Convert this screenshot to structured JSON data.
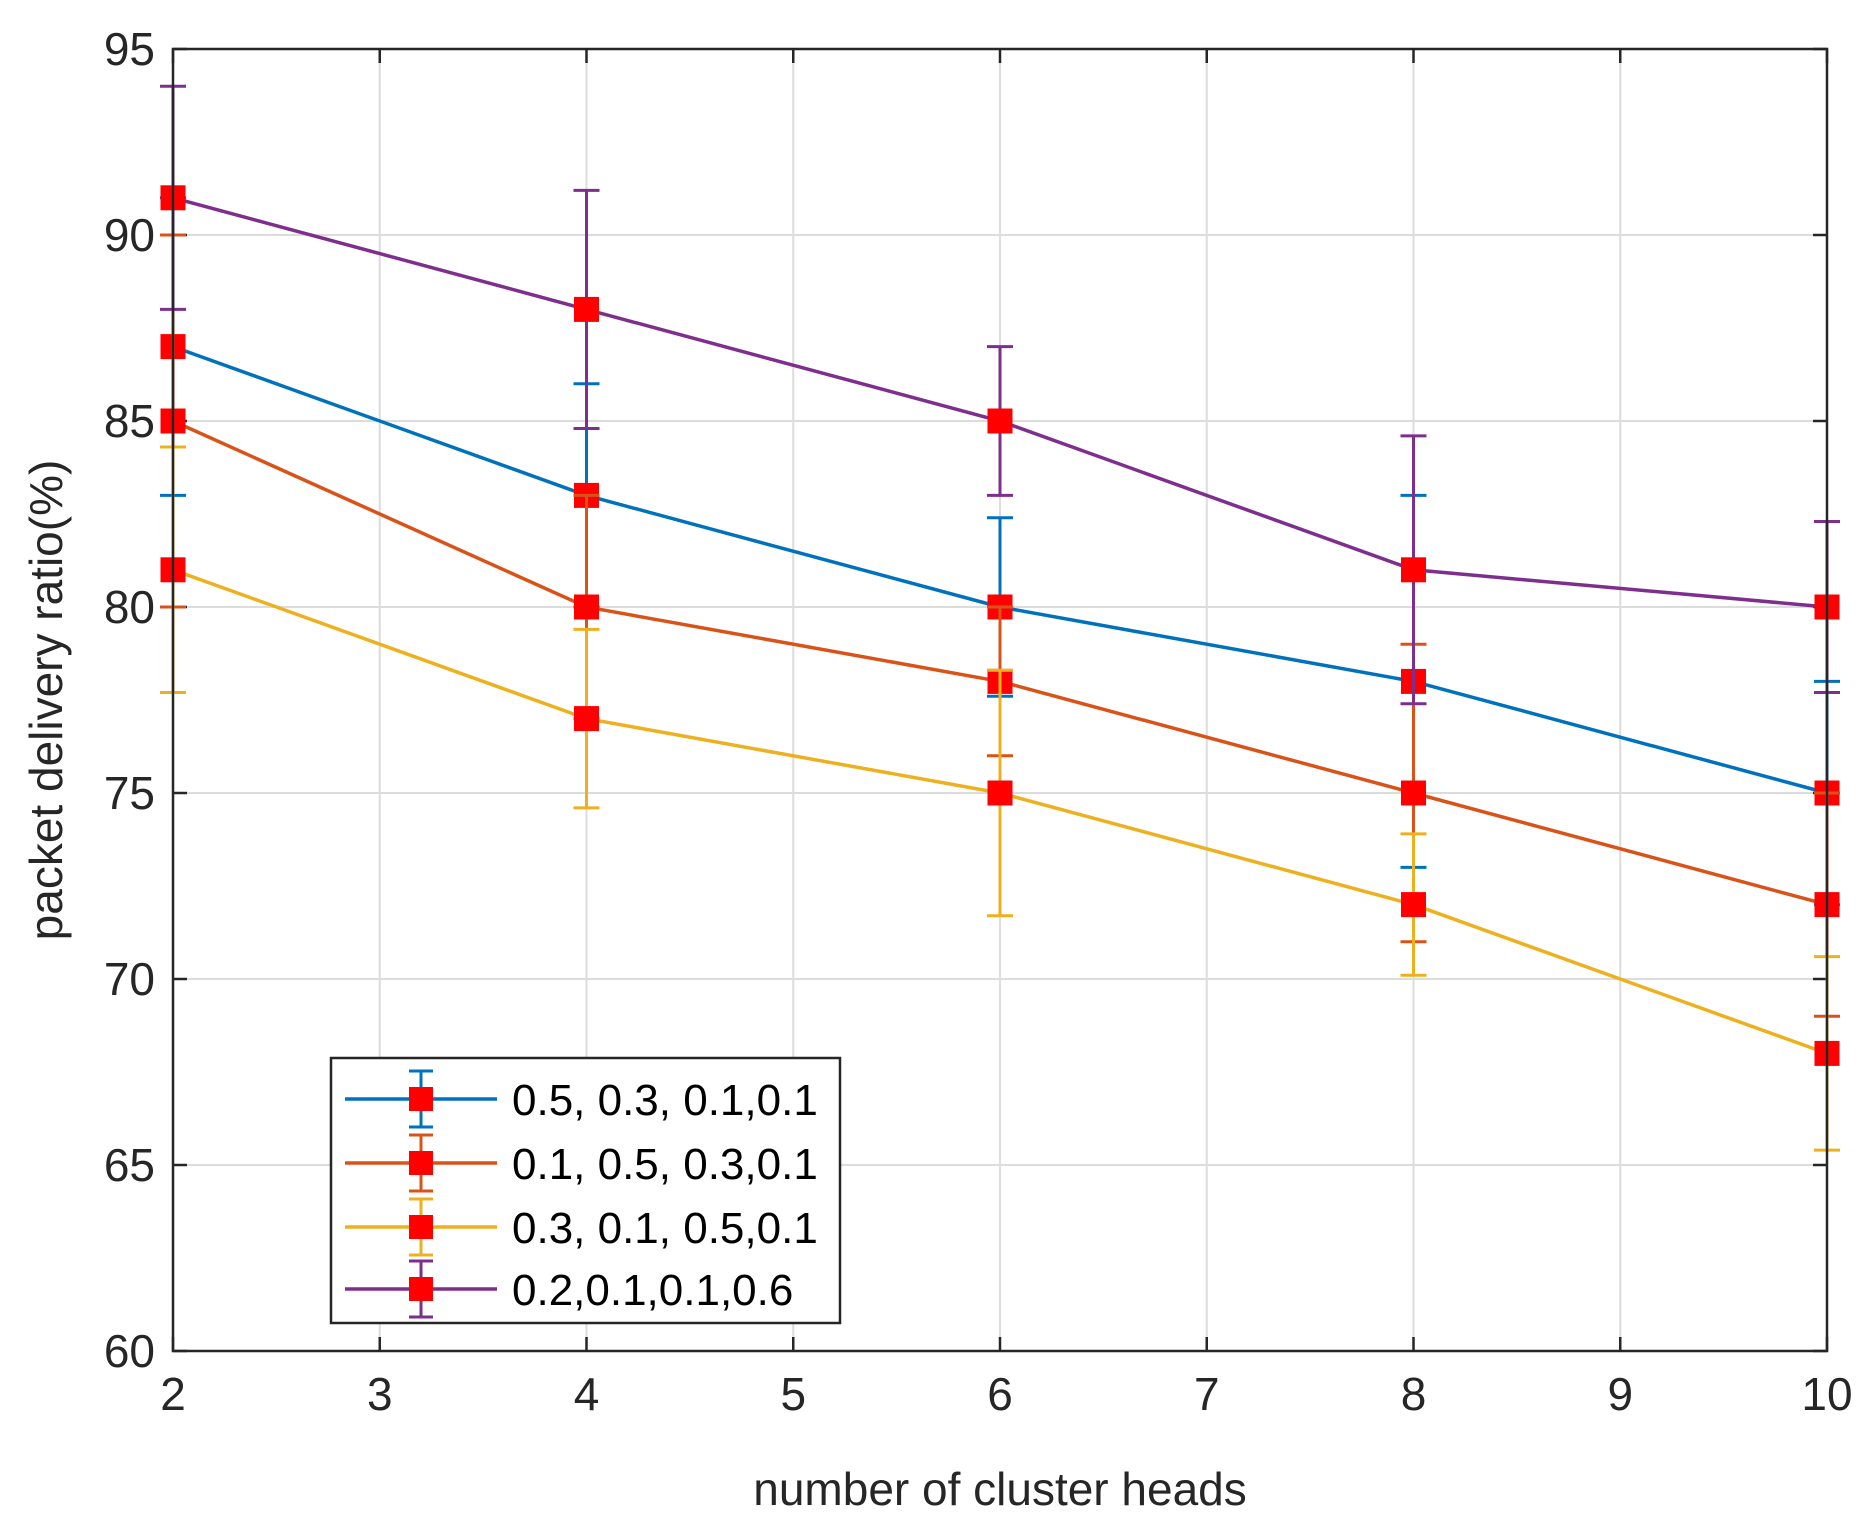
{
  "chart_data": {
    "type": "line",
    "title": "",
    "xlabel": "number of cluster heads",
    "ylabel": "packet delivery ratio(%)",
    "xlim": [
      2,
      10
    ],
    "ylim": [
      60,
      95
    ],
    "xticks": [
      2,
      3,
      4,
      5,
      6,
      7,
      8,
      9,
      10
    ],
    "yticks": [
      60,
      65,
      70,
      75,
      80,
      85,
      90,
      95
    ],
    "grid": true,
    "legend_position": "bottom-left",
    "x": [
      2,
      4,
      6,
      8,
      10
    ],
    "series": [
      {
        "name": "0.5, 0.3, 0.1,0.1",
        "color": "#0072BD",
        "values": [
          87,
          83,
          80,
          78,
          75
        ],
        "err_low": [
          83,
          80,
          77.6,
          73,
          72
        ],
        "err_high": [
          91,
          86,
          82.4,
          83,
          78
        ]
      },
      {
        "name": "0.1, 0.5, 0.3,0.1",
        "color": "#D95319",
        "values": [
          85,
          80,
          78,
          75,
          72
        ],
        "err_low": [
          80,
          77,
          76,
          71,
          69
        ],
        "err_high": [
          90,
          83,
          80,
          79,
          75
        ]
      },
      {
        "name": "0.3, 0.1, 0.5,0.1",
        "color": "#EDB120",
        "values": [
          81,
          77,
          75,
          72,
          68
        ],
        "err_low": [
          77.7,
          74.6,
          71.7,
          70.1,
          65.4
        ],
        "err_high": [
          84.3,
          79.4,
          78.3,
          73.9,
          70.6
        ]
      },
      {
        "name": "0.2,0.1,0.1,0.6",
        "color": "#7E2F8E",
        "values": [
          91,
          88,
          85,
          81,
          80
        ],
        "err_low": [
          88,
          84.8,
          83,
          77.4,
          77.7
        ],
        "err_high": [
          94,
          91.2,
          87,
          84.6,
          82.3
        ]
      }
    ],
    "marker_color": "#FF0000"
  }
}
